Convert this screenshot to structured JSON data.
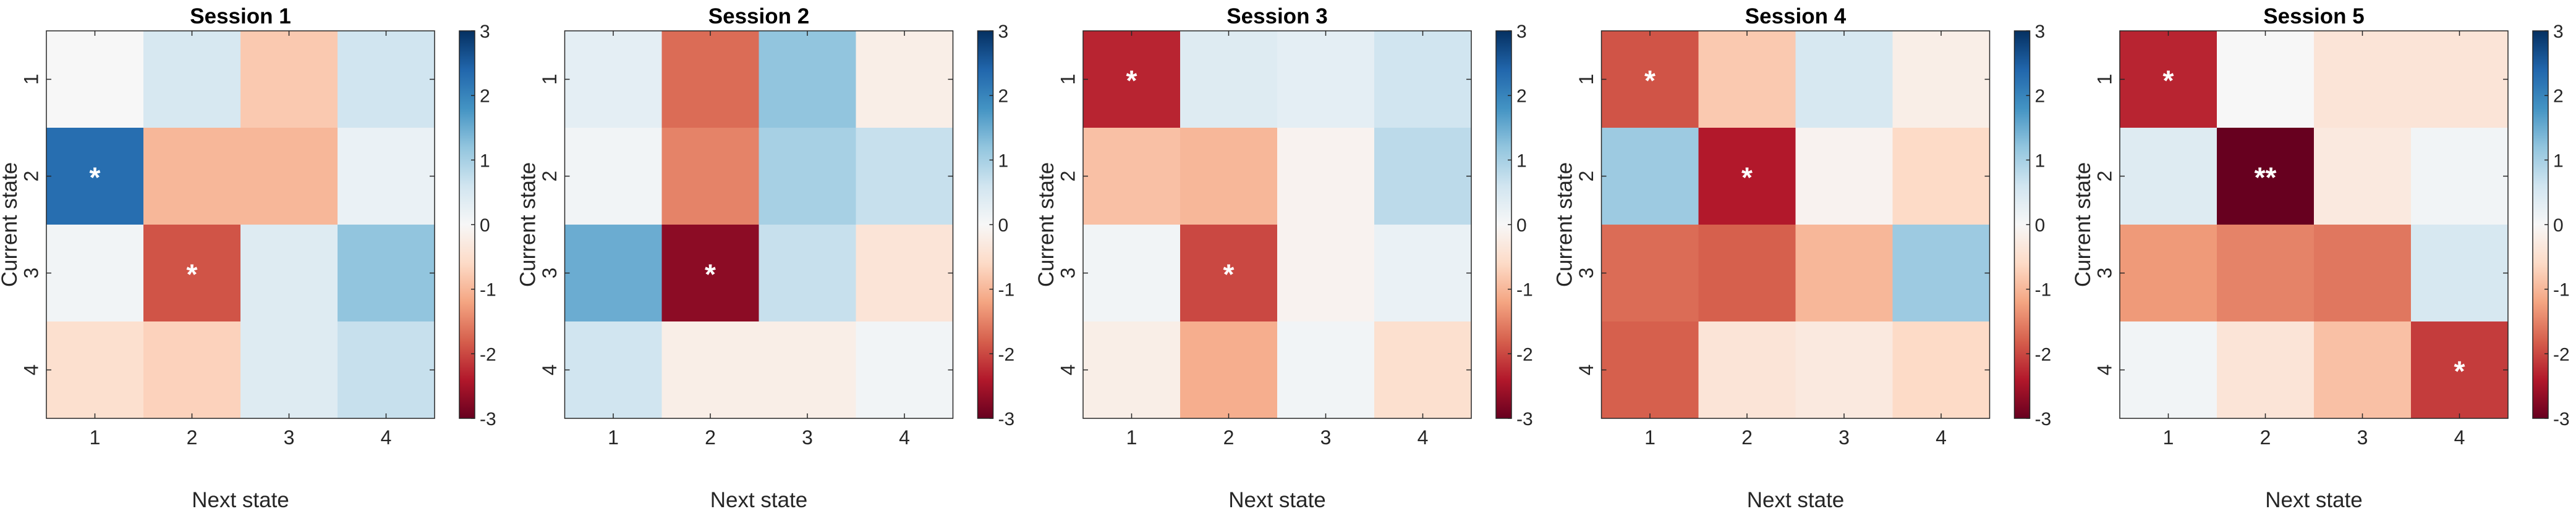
{
  "figure": {
    "background": "#ffffff"
  },
  "colorbar": {
    "ticks": [
      "-3",
      "-2",
      "-1",
      "0",
      "1",
      "2",
      "3"
    ],
    "range": [
      -3,
      3
    ],
    "colormap": "red-white-blue (RdBu)"
  },
  "chart_data": [
    {
      "type": "heatmap",
      "title": "Session 1",
      "xlabel": "Next state",
      "ylabel": "Current state",
      "x_categories": [
        "1",
        "2",
        "3",
        "4"
      ],
      "y_categories": [
        "1",
        "2",
        "3",
        "4"
      ],
      "clim": [
        -3,
        3
      ],
      "values": [
        [
          0.0,
          0.5,
          -0.8,
          0.6
        ],
        [
          2.3,
          -1.0,
          -1.0,
          0.2
        ],
        [
          0.1,
          -1.9,
          0.4,
          1.2
        ],
        [
          -0.5,
          -0.7,
          0.4,
          0.7
        ]
      ],
      "annotations": [
        {
          "row": 2,
          "col": 1,
          "text": "*"
        },
        {
          "row": 3,
          "col": 2,
          "text": "*"
        }
      ]
    },
    {
      "type": "heatmap",
      "title": "Session 2",
      "xlabel": "Next state",
      "ylabel": "Current state",
      "x_categories": [
        "1",
        "2",
        "3",
        "4"
      ],
      "y_categories": [
        "1",
        "2",
        "3",
        "4"
      ],
      "clim": [
        -3,
        3
      ],
      "values": [
        [
          0.3,
          -1.7,
          1.2,
          -0.2
        ],
        [
          0.1,
          -1.5,
          1.0,
          0.7
        ],
        [
          1.5,
          -2.7,
          0.7,
          -0.4
        ],
        [
          0.6,
          -0.2,
          -0.2,
          0.1
        ]
      ],
      "annotations": [
        {
          "row": 3,
          "col": 2,
          "text": "*"
        }
      ]
    },
    {
      "type": "heatmap",
      "title": "Session 3",
      "xlabel": "Next state",
      "ylabel": "Current state",
      "x_categories": [
        "1",
        "2",
        "3",
        "4"
      ],
      "y_categories": [
        "1",
        "2",
        "3",
        "4"
      ],
      "clim": [
        -3,
        3
      ],
      "values": [
        [
          -2.3,
          0.4,
          0.3,
          0.6
        ],
        [
          -0.9,
          -1.0,
          -0.1,
          0.8
        ],
        [
          0.1,
          -2.0,
          -0.1,
          0.2
        ],
        [
          -0.2,
          -1.1,
          0.1,
          -0.5
        ]
      ],
      "annotations": [
        {
          "row": 1,
          "col": 1,
          "text": "*"
        },
        {
          "row": 3,
          "col": 2,
          "text": "*"
        }
      ]
    },
    {
      "type": "heatmap",
      "title": "Session 4",
      "xlabel": "Next state",
      "ylabel": "Current state",
      "x_categories": [
        "1",
        "2",
        "3",
        "4"
      ],
      "y_categories": [
        "1",
        "2",
        "3",
        "4"
      ],
      "clim": [
        -3,
        3
      ],
      "values": [
        [
          -1.9,
          -0.8,
          0.5,
          -0.2
        ],
        [
          1.1,
          -2.4,
          -0.1,
          -0.6
        ],
        [
          -1.7,
          -1.8,
          -1.0,
          1.1
        ],
        [
          -1.8,
          -0.4,
          -0.3,
          -0.6
        ]
      ],
      "annotations": [
        {
          "row": 1,
          "col": 1,
          "text": "*"
        },
        {
          "row": 2,
          "col": 2,
          "text": "*"
        }
      ]
    },
    {
      "type": "heatmap",
      "title": "Session 5",
      "xlabel": "Next state",
      "ylabel": "Current state",
      "x_categories": [
        "1",
        "2",
        "3",
        "4"
      ],
      "y_categories": [
        "1",
        "2",
        "3",
        "4"
      ],
      "clim": [
        -3,
        3
      ],
      "values": [
        [
          -2.3,
          0.0,
          -0.4,
          -0.4
        ],
        [
          0.4,
          -3.0,
          -0.3,
          0.1
        ],
        [
          -1.3,
          -1.5,
          -1.6,
          0.5
        ],
        [
          0.1,
          -0.4,
          -0.9,
          -2.1
        ]
      ],
      "annotations": [
        {
          "row": 1,
          "col": 1,
          "text": "*"
        },
        {
          "row": 2,
          "col": 2,
          "text": "**"
        },
        {
          "row": 4,
          "col": 4,
          "text": "*"
        }
      ]
    }
  ]
}
